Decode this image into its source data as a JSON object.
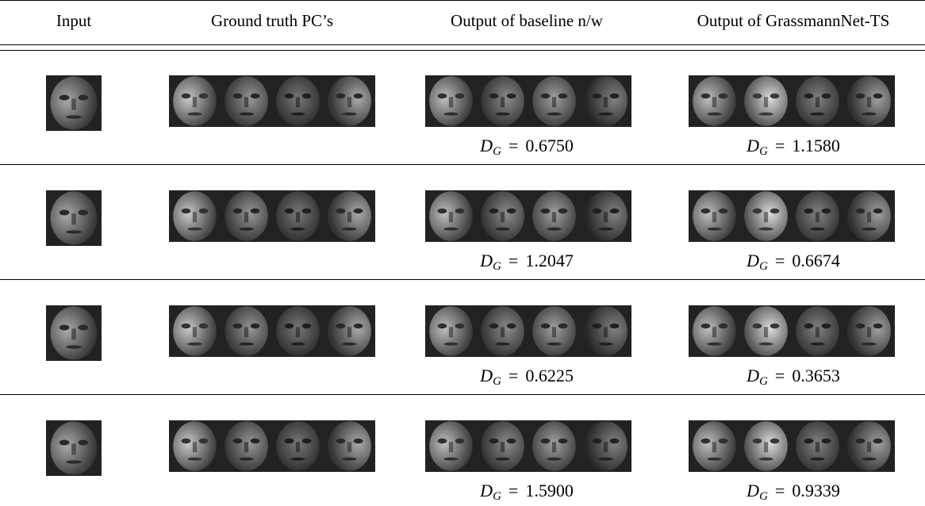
{
  "header": {
    "columns": [
      "Input",
      "Ground truth PC’s",
      "Output of baseline n/w",
      "Output of GrassmannNet-TS"
    ]
  },
  "metric": {
    "symbol": "D",
    "subscript": "G",
    "relation": "="
  },
  "table": {
    "rows": [
      {
        "baseline": "0.6750",
        "grassmann": "1.1580"
      },
      {
        "baseline": "1.2047",
        "grassmann": "0.6674"
      },
      {
        "baseline": "0.6225",
        "grassmann": "0.3653"
      },
      {
        "baseline": "1.5900",
        "grassmann": "0.9339"
      }
    ]
  }
}
